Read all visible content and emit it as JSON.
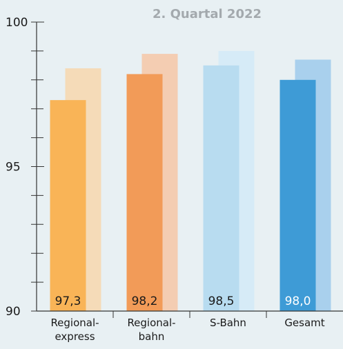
{
  "chart_data": {
    "type": "bar",
    "title": "",
    "subtitle": "2. Quartal 2022",
    "xlabel": "",
    "ylabel": "",
    "ylim": [
      90,
      100
    ],
    "yticks": [
      "100",
      "95",
      "90"
    ],
    "categories": [
      [
        "Regional-",
        "express"
      ],
      [
        "Regional-",
        "bahn"
      ],
      [
        "S-Bahn"
      ],
      [
        "Gesamt"
      ]
    ],
    "series": [
      {
        "values": [
          97.3,
          98.2,
          98.5,
          98.0
        ],
        "labels": [
          "97,3",
          "98,2",
          "98,5",
          "98,0"
        ],
        "colors": [
          "#f9b457",
          "#f29b58",
          "#b8dcf0",
          "#3e9bd6"
        ],
        "label_colors": [
          "#1a1a1a",
          "#1a1a1a",
          "#1a1a1a",
          "#ffffff"
        ]
      },
      {
        "values": [
          98.4,
          98.9,
          99.0,
          98.7
        ],
        "colors": [
          "#f5dbb8",
          "#f4cdb2",
          "#d6ebf7",
          "#a9d0ed"
        ]
      }
    ],
    "grid": false,
    "legend": "none"
  }
}
